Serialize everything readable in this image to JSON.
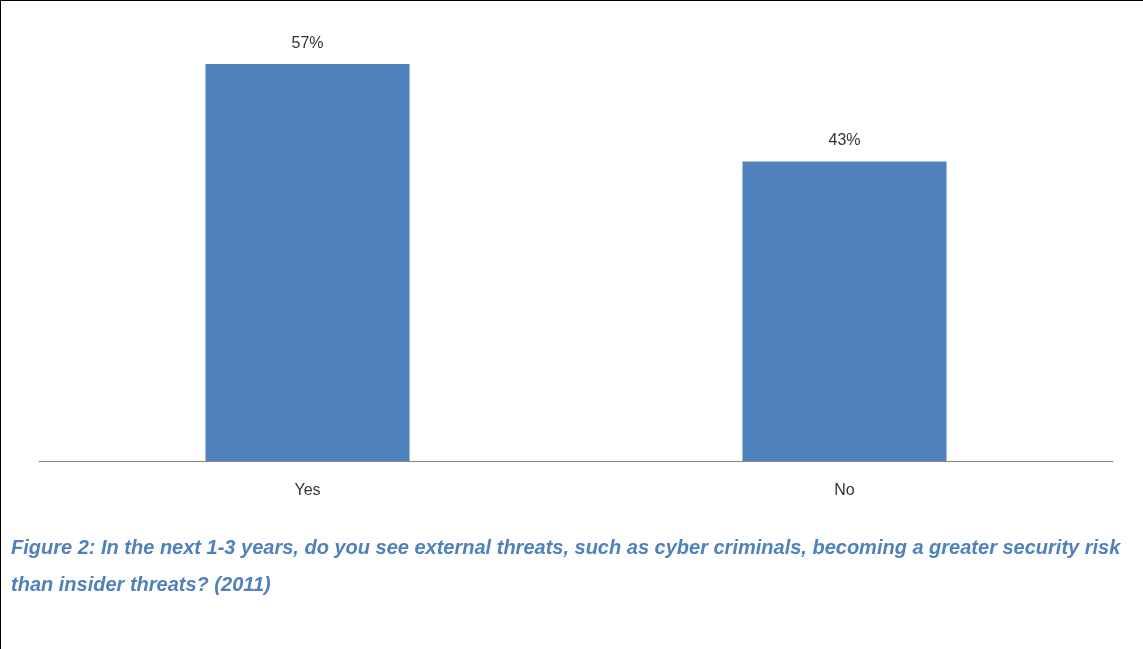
{
  "chart_data": {
    "type": "bar",
    "categories": [
      "Yes",
      "No"
    ],
    "values": [
      57,
      43
    ],
    "value_labels": [
      "57%",
      "43%"
    ],
    "color": "#4f81bd",
    "annotations": [
      "Figure 2: In the next 1-3 years, do you see external threats, such as cyber criminals, becoming a greater security risk than insider threats? (2011)"
    ]
  }
}
